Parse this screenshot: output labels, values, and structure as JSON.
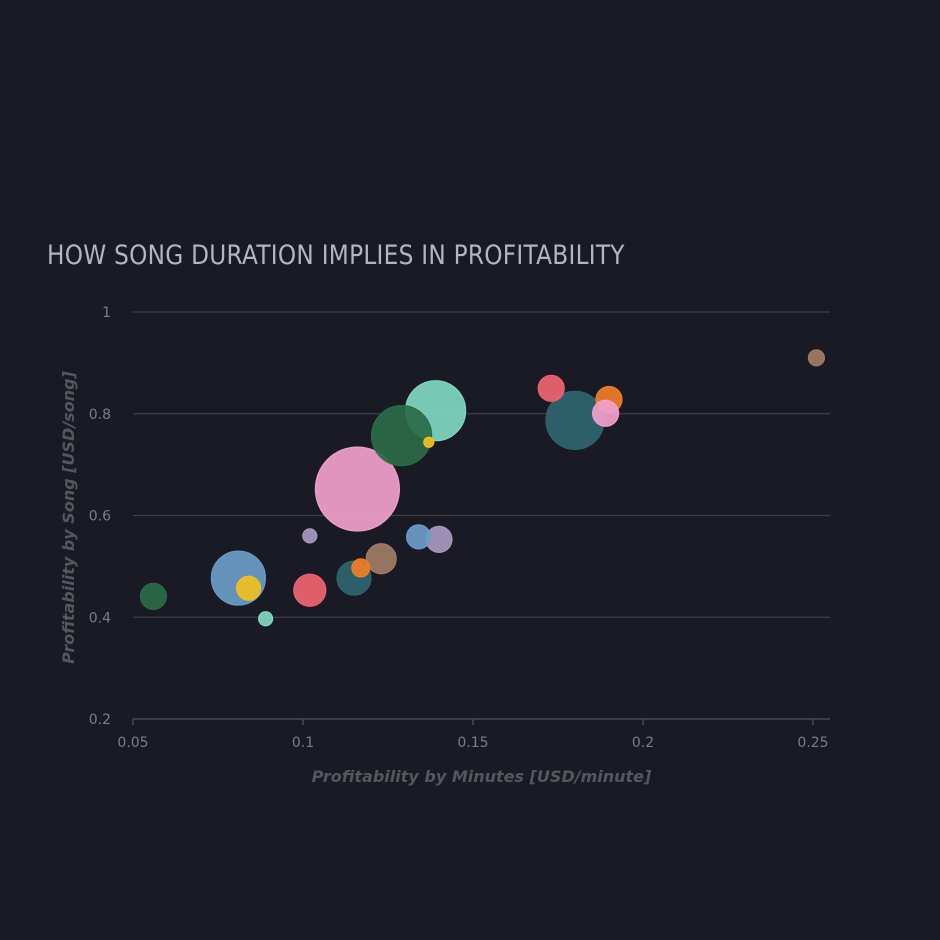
{
  "chart_data": {
    "type": "scatter",
    "title": "HOW SONG DURATION IMPLIES IN PROFITABILITY",
    "xlabel": "Profitability by Minutes [USD/minute]",
    "ylabel": "Profitability by Song [USD/song]",
    "xlim": [
      0.05,
      0.255
    ],
    "ylim": [
      0.2,
      1.0
    ],
    "x_ticks": [
      0.05,
      0.1,
      0.15,
      0.2,
      0.25
    ],
    "x_tick_labels": [
      "0.05",
      "0.1",
      "0.15",
      "0.2",
      "0.25"
    ],
    "y_ticks": [
      0.2,
      0.4,
      0.6,
      0.8,
      1.0
    ],
    "y_tick_labels": [
      "0.2",
      "0.4",
      "0.6",
      "0.8",
      "1"
    ],
    "grid": "horizontal",
    "size_encoding": "relative bubble size",
    "points": [
      {
        "x": 0.116,
        "y": 0.652,
        "size": 42,
        "color": "#f0a0cc"
      },
      {
        "x": 0.139,
        "y": 0.806,
        "size": 30,
        "color": "#7fd8c0"
      },
      {
        "x": 0.129,
        "y": 0.757,
        "size": 30,
        "color": "#2a6b48"
      },
      {
        "x": 0.18,
        "y": 0.787,
        "size": 29,
        "color": "#2e6570"
      },
      {
        "x": 0.081,
        "y": 0.477,
        "size": 27,
        "color": "#6a9cc8"
      },
      {
        "x": 0.115,
        "y": 0.477,
        "size": 17,
        "color": "#2e6570"
      },
      {
        "x": 0.123,
        "y": 0.515,
        "size": 15,
        "color": "#a07c66"
      },
      {
        "x": 0.102,
        "y": 0.453,
        "size": 16,
        "color": "#ef6470"
      },
      {
        "x": 0.14,
        "y": 0.553,
        "size": 13,
        "color": "#a898c0"
      },
      {
        "x": 0.134,
        "y": 0.558,
        "size": 12,
        "color": "#6a9cc8"
      },
      {
        "x": 0.173,
        "y": 0.85,
        "size": 13,
        "color": "#ef6470"
      },
      {
        "x": 0.19,
        "y": 0.828,
        "size": 13,
        "color": "#f07e26"
      },
      {
        "x": 0.189,
        "y": 0.801,
        "size": 13,
        "color": "#f0a0cc"
      },
      {
        "x": 0.056,
        "y": 0.441,
        "size": 13,
        "color": "#2a6b48"
      },
      {
        "x": 0.084,
        "y": 0.457,
        "size": 12,
        "color": "#f0c020"
      },
      {
        "x": 0.117,
        "y": 0.497,
        "size": 9,
        "color": "#f07e26"
      },
      {
        "x": 0.102,
        "y": 0.56,
        "size": 7,
        "color": "#a898c0"
      },
      {
        "x": 0.089,
        "y": 0.397,
        "size": 7,
        "color": "#7fd8c0"
      },
      {
        "x": 0.137,
        "y": 0.744,
        "size": 5,
        "color": "#f0c020"
      },
      {
        "x": 0.251,
        "y": 0.91,
        "size": 8,
        "color": "#a07c66"
      }
    ]
  }
}
